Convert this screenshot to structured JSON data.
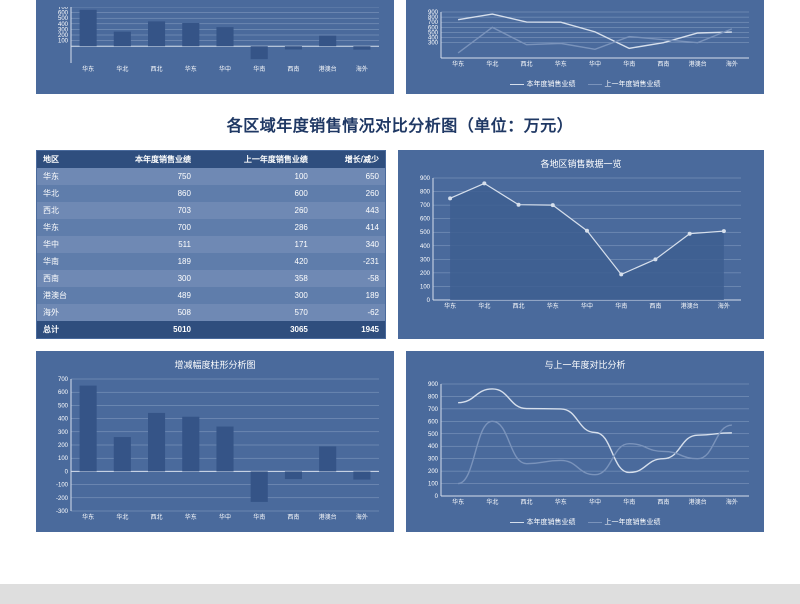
{
  "regions": [
    "华东",
    "华北",
    "西北",
    "华东",
    "华中",
    "华南",
    "西南",
    "港澳台",
    "海外"
  ],
  "main_title": "各区域年度销售情况对比分析图（单位：万元）",
  "colors": {
    "panel_bg": "#4a6a9c",
    "header_bg": "#2f4e7e",
    "row_alt1": "#6f89b4",
    "row_alt2": "#5f7dab",
    "grid": "#9ab0cf",
    "axis": "#d6dfec",
    "bar": "#355487",
    "bar_neg": "#355487",
    "area_fill": "#3d5e91",
    "area_stroke": "#d6dfec",
    "line_a": "#d6dfec",
    "line_b": "#7a93bb",
    "text": "#ffffff",
    "title": "#1f3864"
  },
  "top_bar_chart": {
    "title": "",
    "ylim": [
      -300,
      700
    ],
    "ytick_step": 100,
    "values": [
      650,
      260,
      443,
      414,
      340,
      -231,
      -58,
      189,
      -62
    ]
  },
  "top_line_chart": {
    "title": "",
    "ylim": [
      0,
      900
    ],
    "ytick_step": 100,
    "visible_min_tick": 300,
    "series": [
      {
        "name": "本年度销售业绩",
        "color": "#d6dfec",
        "values": [
          750,
          860,
          703,
          700,
          511,
          189,
          300,
          489,
          508
        ]
      },
      {
        "name": "上一年度销售业绩",
        "color": "#7a93bb",
        "values": [
          100,
          600,
          260,
          286,
          171,
          420,
          358,
          300,
          570
        ]
      }
    ]
  },
  "table": {
    "columns": [
      "地区",
      "本年度销售业绩",
      "上一年度销售业绩",
      "增长/减少"
    ],
    "rows": [
      [
        "华东",
        750,
        100,
        650
      ],
      [
        "华北",
        860,
        600,
        260
      ],
      [
        "西北",
        703,
        260,
        443
      ],
      [
        "华东",
        700,
        286,
        414
      ],
      [
        "华中",
        511,
        171,
        340
      ],
      [
        "华南",
        189,
        420,
        -231
      ],
      [
        "西南",
        300,
        358,
        -58
      ],
      [
        "港澳台",
        489,
        300,
        189
      ],
      [
        "海外",
        508,
        570,
        -62
      ]
    ],
    "total_label": "总计",
    "total": [
      5010,
      3065,
      1945
    ]
  },
  "area_chart": {
    "title": "各地区销售数据一览",
    "ylim": [
      0,
      900
    ],
    "ytick_step": 100,
    "values": [
      750,
      860,
      703,
      700,
      511,
      189,
      300,
      489,
      508
    ]
  },
  "delta_bar_chart": {
    "title": "增减幅度柱形分析图",
    "ylim": [
      -300,
      700
    ],
    "ytick_step": 100,
    "values": [
      650,
      260,
      443,
      414,
      340,
      -231,
      -58,
      189,
      -62
    ]
  },
  "compare_line_chart": {
    "title": "与上一年度对比分析",
    "ylim": [
      0,
      900
    ],
    "ytick_step": 100,
    "series": [
      {
        "name": "本年度销售业绩",
        "color": "#d6dfec",
        "values": [
          750,
          860,
          703,
          700,
          511,
          189,
          300,
          489,
          508
        ]
      },
      {
        "name": "上一年度销售业绩",
        "color": "#7a93bb",
        "values": [
          100,
          600,
          260,
          286,
          171,
          420,
          358,
          300,
          570
        ]
      }
    ]
  }
}
